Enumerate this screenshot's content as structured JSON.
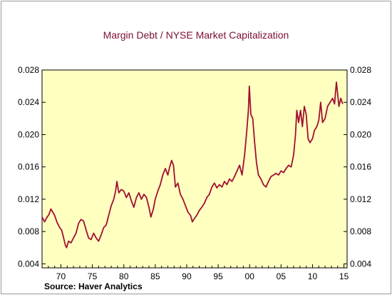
{
  "chart_data": {
    "type": "line",
    "title": "Margin Debt / NYSE Market Capitalization",
    "source": "Source: Haver Analytics",
    "xlabel": "",
    "ylabel": "",
    "xlim": [
      1967,
      2015.5
    ],
    "ylim": [
      0.0035,
      0.028
    ],
    "x_ticks": [
      1970,
      1975,
      1980,
      1985,
      1990,
      1995,
      2000,
      2005,
      2010,
      2015
    ],
    "x_tick_labels": [
      "70",
      "75",
      "80",
      "85",
      "90",
      "95",
      "00",
      "05",
      "10",
      "15"
    ],
    "y_ticks": [
      0.004,
      0.008,
      0.012,
      0.016,
      0.02,
      0.024,
      0.028
    ],
    "y_tick_labels_left": [
      "0.004",
      "0.008",
      "0.012",
      "0.016",
      "0.020",
      "0.024",
      "0.028"
    ],
    "y_tick_labels_right": [
      "0.004",
      "0.008",
      "0.012",
      "0.016",
      "0.020",
      "0.024",
      "0.028"
    ],
    "grid": false,
    "colors": {
      "plot_bg": "#ffffc0",
      "line": "#a01030",
      "title": "#7a1030"
    },
    "series": [
      {
        "name": "",
        "points": [
          [
            1967.0,
            0.0098
          ],
          [
            1967.4,
            0.0092
          ],
          [
            1967.8,
            0.0098
          ],
          [
            1968.1,
            0.0101
          ],
          [
            1968.4,
            0.0108
          ],
          [
            1968.7,
            0.0104
          ],
          [
            1969.0,
            0.01
          ],
          [
            1969.4,
            0.0091
          ],
          [
            1969.8,
            0.0085
          ],
          [
            1970.1,
            0.0082
          ],
          [
            1970.4,
            0.0073
          ],
          [
            1970.7,
            0.0063
          ],
          [
            1970.9,
            0.006
          ],
          [
            1971.2,
            0.0068
          ],
          [
            1971.6,
            0.0066
          ],
          [
            1972.0,
            0.0072
          ],
          [
            1972.4,
            0.0078
          ],
          [
            1972.8,
            0.009
          ],
          [
            1973.2,
            0.0095
          ],
          [
            1973.6,
            0.0093
          ],
          [
            1974.0,
            0.0082
          ],
          [
            1974.4,
            0.0072
          ],
          [
            1974.8,
            0.007
          ],
          [
            1975.2,
            0.0078
          ],
          [
            1975.6,
            0.0072
          ],
          [
            1976.0,
            0.0068
          ],
          [
            1976.4,
            0.0076
          ],
          [
            1976.8,
            0.0085
          ],
          [
            1977.2,
            0.0088
          ],
          [
            1977.6,
            0.01
          ],
          [
            1978.0,
            0.0112
          ],
          [
            1978.4,
            0.012
          ],
          [
            1978.7,
            0.013
          ],
          [
            1978.9,
            0.0142
          ],
          [
            1979.2,
            0.0128
          ],
          [
            1979.6,
            0.0132
          ],
          [
            1980.0,
            0.013
          ],
          [
            1980.4,
            0.0122
          ],
          [
            1980.8,
            0.0128
          ],
          [
            1981.2,
            0.0118
          ],
          [
            1981.6,
            0.011
          ],
          [
            1982.0,
            0.0122
          ],
          [
            1982.4,
            0.0128
          ],
          [
            1982.8,
            0.012
          ],
          [
            1983.2,
            0.0126
          ],
          [
            1983.6,
            0.0122
          ],
          [
            1984.0,
            0.011
          ],
          [
            1984.3,
            0.0098
          ],
          [
            1984.7,
            0.0108
          ],
          [
            1985.0,
            0.012
          ],
          [
            1985.4,
            0.013
          ],
          [
            1985.8,
            0.0138
          ],
          [
            1986.2,
            0.015
          ],
          [
            1986.6,
            0.0158
          ],
          [
            1987.0,
            0.015
          ],
          [
            1987.3,
            0.016
          ],
          [
            1987.6,
            0.0168
          ],
          [
            1987.9,
            0.0162
          ],
          [
            1988.2,
            0.0135
          ],
          [
            1988.6,
            0.014
          ],
          [
            1989.0,
            0.0126
          ],
          [
            1989.4,
            0.012
          ],
          [
            1989.8,
            0.0112
          ],
          [
            1990.2,
            0.0104
          ],
          [
            1990.6,
            0.01
          ],
          [
            1990.9,
            0.0092
          ],
          [
            1991.2,
            0.0096
          ],
          [
            1991.6,
            0.01
          ],
          [
            1992.0,
            0.0106
          ],
          [
            1992.4,
            0.011
          ],
          [
            1992.8,
            0.0115
          ],
          [
            1993.2,
            0.0122
          ],
          [
            1993.6,
            0.0126
          ],
          [
            1994.0,
            0.0135
          ],
          [
            1994.4,
            0.014
          ],
          [
            1994.8,
            0.0134
          ],
          [
            1995.2,
            0.0138
          ],
          [
            1995.6,
            0.0135
          ],
          [
            1996.0,
            0.0142
          ],
          [
            1996.4,
            0.0138
          ],
          [
            1996.8,
            0.0145
          ],
          [
            1997.2,
            0.0142
          ],
          [
            1997.6,
            0.0148
          ],
          [
            1998.0,
            0.0155
          ],
          [
            1998.4,
            0.0162
          ],
          [
            1998.8,
            0.015
          ],
          [
            1999.2,
            0.0175
          ],
          [
            1999.5,
            0.02
          ],
          [
            1999.8,
            0.023
          ],
          [
            1999.95,
            0.026
          ],
          [
            2000.2,
            0.0225
          ],
          [
            2000.5,
            0.022
          ],
          [
            2000.8,
            0.019
          ],
          [
            2001.1,
            0.0165
          ],
          [
            2001.4,
            0.015
          ],
          [
            2001.8,
            0.0145
          ],
          [
            2002.2,
            0.0138
          ],
          [
            2002.6,
            0.0135
          ],
          [
            2003.0,
            0.0142
          ],
          [
            2003.4,
            0.0148
          ],
          [
            2003.8,
            0.015
          ],
          [
            2004.2,
            0.0152
          ],
          [
            2004.6,
            0.015
          ],
          [
            2005.0,
            0.0155
          ],
          [
            2005.4,
            0.0153
          ],
          [
            2005.8,
            0.0158
          ],
          [
            2006.2,
            0.0162
          ],
          [
            2006.6,
            0.016
          ],
          [
            2007.0,
            0.0175
          ],
          [
            2007.3,
            0.02
          ],
          [
            2007.5,
            0.023
          ],
          [
            2007.8,
            0.0215
          ],
          [
            2008.1,
            0.023
          ],
          [
            2008.4,
            0.021
          ],
          [
            2008.7,
            0.0235
          ],
          [
            2009.0,
            0.0225
          ],
          [
            2009.3,
            0.0195
          ],
          [
            2009.6,
            0.019
          ],
          [
            2010.0,
            0.0195
          ],
          [
            2010.3,
            0.0205
          ],
          [
            2010.7,
            0.021
          ],
          [
            2011.0,
            0.0218
          ],
          [
            2011.3,
            0.024
          ],
          [
            2011.6,
            0.0215
          ],
          [
            2012.0,
            0.022
          ],
          [
            2012.4,
            0.0235
          ],
          [
            2012.8,
            0.024
          ],
          [
            2013.2,
            0.0245
          ],
          [
            2013.5,
            0.0238
          ],
          [
            2013.8,
            0.0265
          ],
          [
            2014.0,
            0.025
          ],
          [
            2014.2,
            0.0235
          ],
          [
            2014.5,
            0.0245
          ],
          [
            2014.8,
            0.0238
          ]
        ]
      }
    ]
  }
}
